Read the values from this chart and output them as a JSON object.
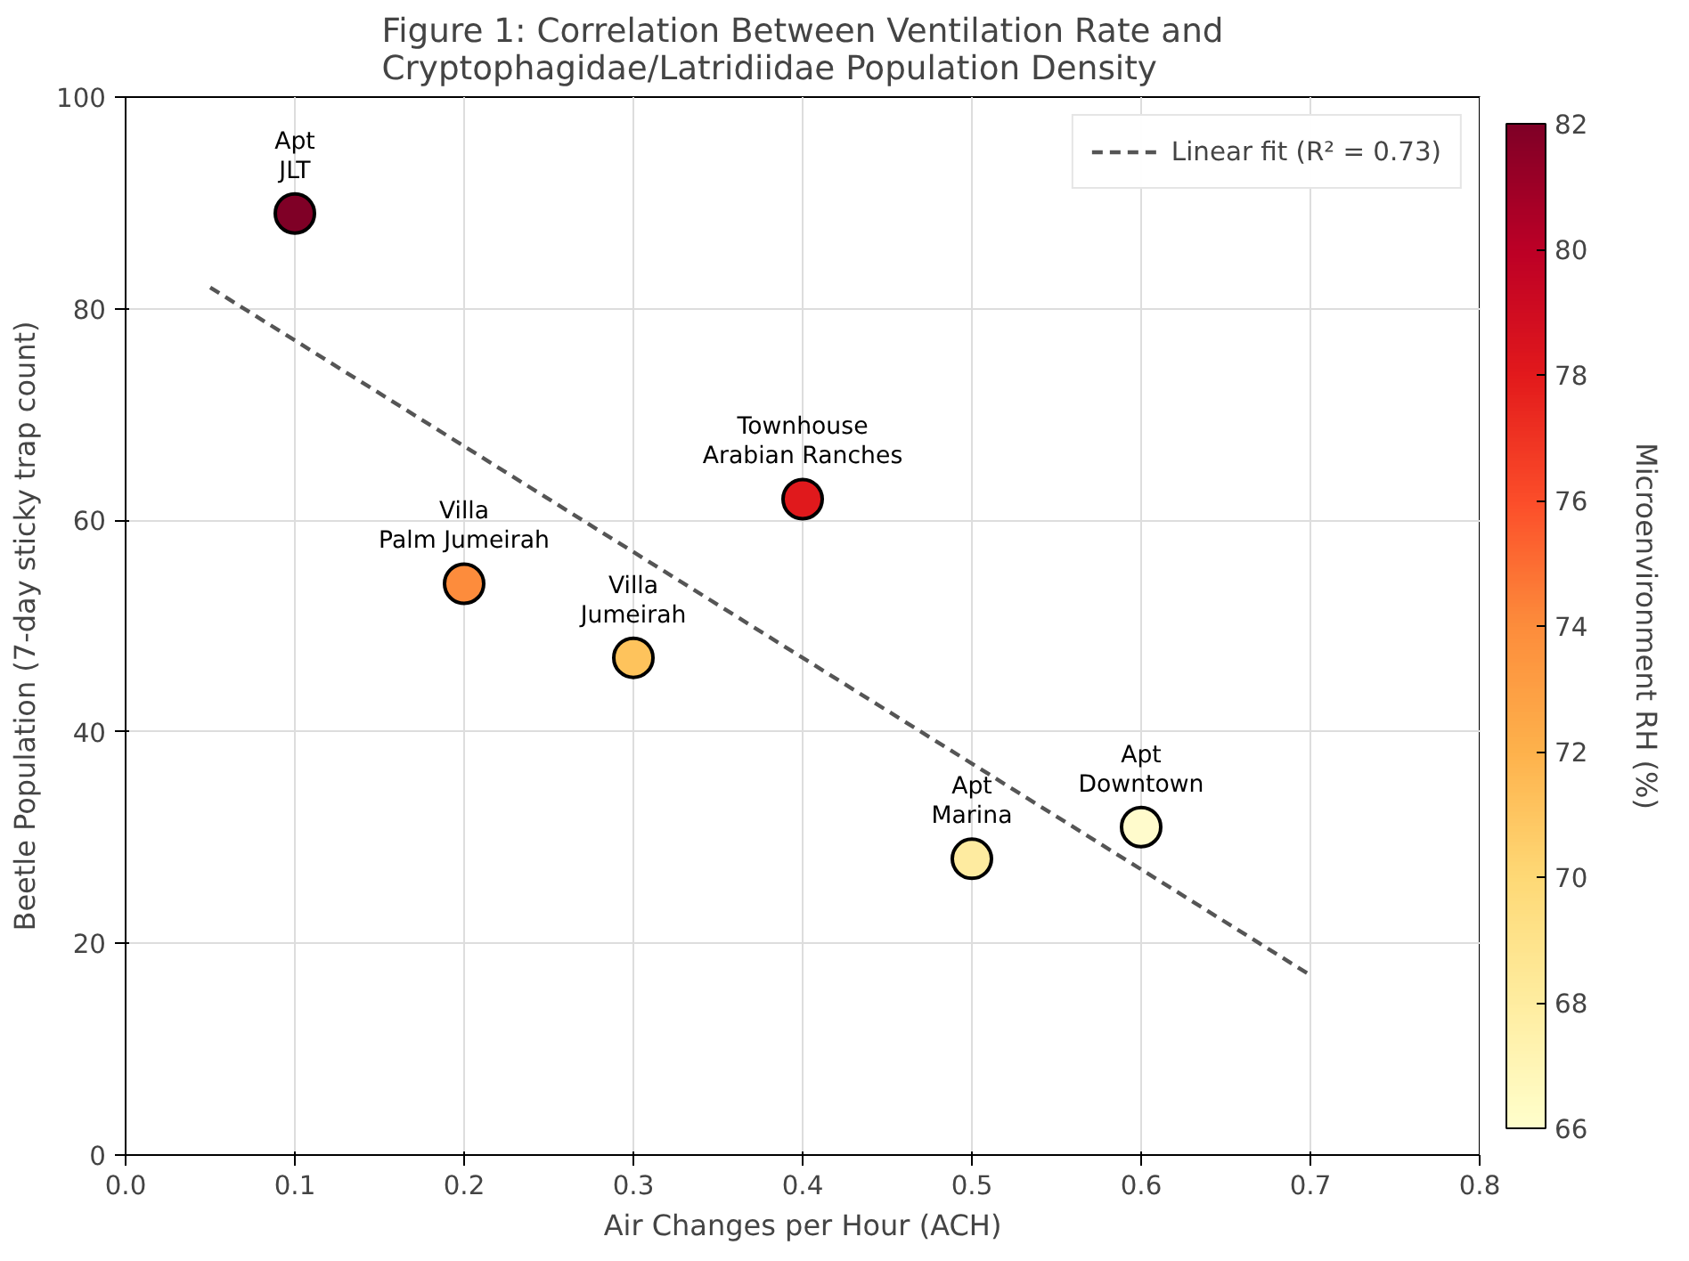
{
  "chart_data": {
    "type": "scatter",
    "title": "Figure 1: Correlation Between Ventilation Rate and\nCryptophagidae/Latridiidae Population Density",
    "xlabel": "Air Changes per Hour (ACH)",
    "ylabel": "Beetle Population (7-day sticky trap count)",
    "clabel": "Microenvironment RH (%)",
    "xlim": [
      0.0,
      0.8
    ],
    "xticks": [
      {
        "value": 0,
        "label": "0.0"
      },
      0.1,
      0.2,
      0.3,
      0.4,
      0.5,
      0.6,
      0.7,
      0.8
    ],
    "ylim": [
      0,
      100
    ],
    "yticks": [
      0,
      20,
      40,
      60,
      80,
      100
    ],
    "clim": [
      66,
      82
    ],
    "cticks": [
      66,
      68,
      70,
      72,
      74,
      76,
      78,
      80,
      82
    ],
    "grid": true,
    "legend": "top right",
    "series": [
      {
        "marker": "circle",
        "x": [
          0.1,
          0.2,
          0.3,
          0.4,
          0.5,
          0.6
        ],
        "values": [
          89,
          54,
          47,
          62,
          28,
          31
        ],
        "colors": [
          "#7f0026",
          "#fd8c3c",
          "#fec35c",
          "#e0191c",
          "#feeba0",
          "#fffbcc"
        ]
      },
      {
        "type": "line",
        "name": "Linear fit (R² = 0.73)",
        "color": "#555555",
        "line_style": "dashed",
        "x": [
          0.05,
          0.7
        ],
        "values": [
          82,
          17
        ]
      }
    ],
    "annotations": [
      {
        "text": "Apt\nJLT",
        "x": 0.1,
        "y": 89
      },
      {
        "text": "Villa\nPalm Jumeirah",
        "x": 0.2,
        "y": 54
      },
      {
        "text": "Villa\nJumeirah",
        "x": 0.3,
        "y": 47
      },
      {
        "text": "Townhouse\nArabian Ranches",
        "x": 0.4,
        "y": 62
      },
      {
        "text": "Apt\nMarina",
        "x": 0.5,
        "y": 28
      },
      {
        "text": "Apt\nDowntown",
        "x": 0.6,
        "y": 31
      }
    ]
  }
}
